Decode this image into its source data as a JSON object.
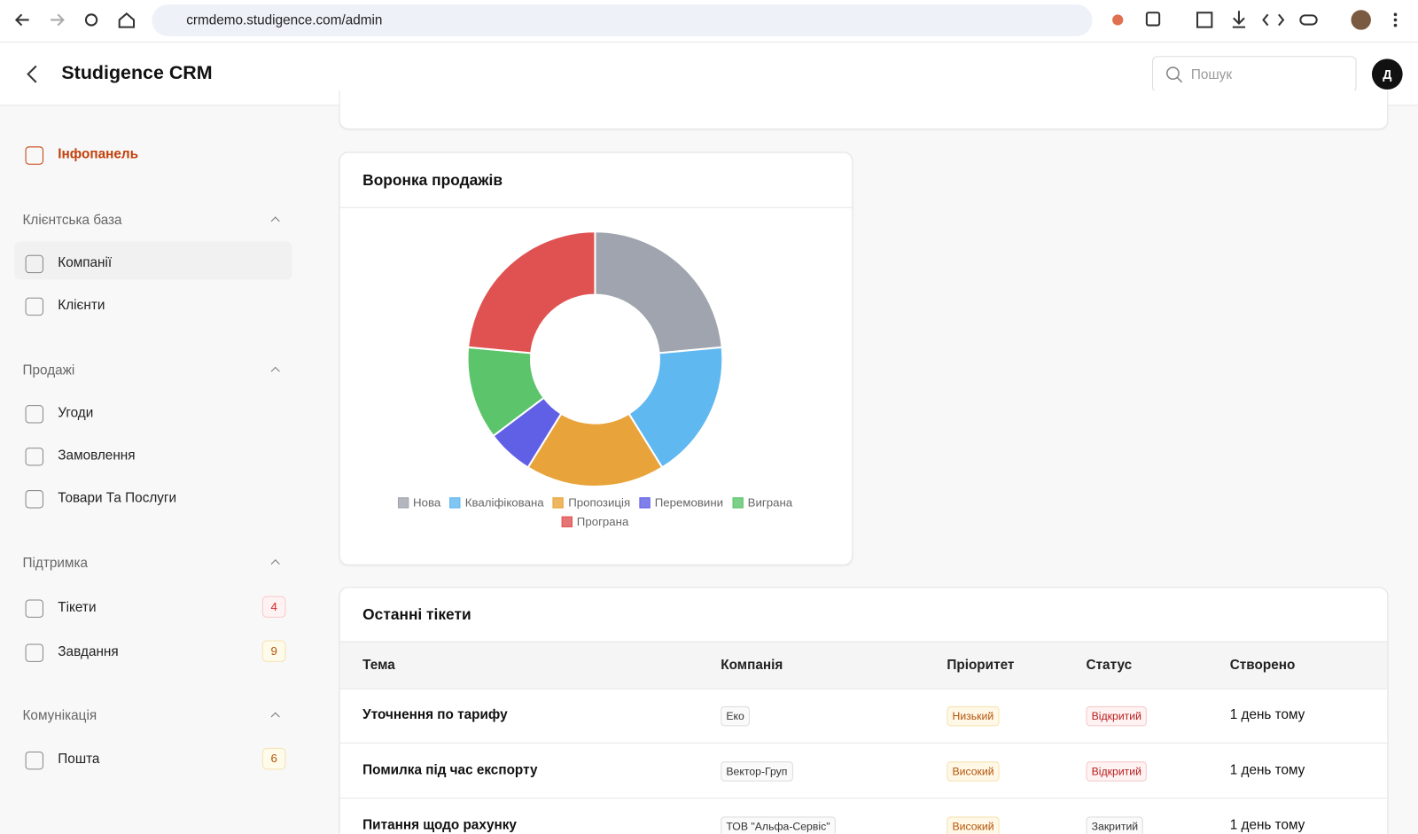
{
  "browser": {
    "url": "crmdemo.studigence.com/admin"
  },
  "header": {
    "title": "Studigence CRM",
    "search_placeholder": "Пошук",
    "avatar": "Д"
  },
  "sidebar": {
    "dashboard": "Інфопанель",
    "sections": [
      {
        "title": "Клієнтська база",
        "items": [
          {
            "label": "Компанії"
          },
          {
            "label": "Клієнти"
          }
        ]
      },
      {
        "title": "Продажі",
        "items": [
          {
            "label": "Угоди"
          },
          {
            "label": "Замовлення"
          },
          {
            "label": "Товари Та Послуги"
          }
        ]
      },
      {
        "title": "Підтримка",
        "items": [
          {
            "label": "Тікети",
            "badge": "4"
          },
          {
            "label": "Завдання",
            "badge": "9"
          }
        ]
      },
      {
        "title": "Комунікація",
        "items": [
          {
            "label": "Пошта",
            "badge": "6"
          }
        ]
      }
    ]
  },
  "chart_data": {
    "type": "pie",
    "donut": true,
    "title": "Воронка продажів",
    "legend": "bottom",
    "categories": [
      "Нова",
      "Кваліфікована",
      "Пропозиція",
      "Перемовини",
      "Виграна",
      "Програна"
    ],
    "values": [
      4,
      3,
      3,
      1,
      2,
      4
    ],
    "colors": [
      "#a0a4ae",
      "#60b8f0",
      "#e8a43a",
      "#6060e6",
      "#5cc46a",
      "#e05252"
    ]
  },
  "tickets": {
    "title": "Останні тікети",
    "columns": [
      "Тема",
      "Компанія",
      "Пріоритет",
      "Статус",
      "Створено"
    ],
    "rows": [
      [
        "Уточнення по тарифу",
        "Еко",
        "Низький",
        "Відкритий",
        "1 день тому"
      ],
      [
        "Помилка під час експорту",
        "Вектор-Груп",
        "Високий",
        "Відкритий",
        "1 день тому"
      ],
      [
        "Питання щодо рахунку",
        "ТОВ \"Альфа-Сервіс\"",
        "Високий",
        "Закритий",
        "1 день тому"
      ]
    ]
  }
}
